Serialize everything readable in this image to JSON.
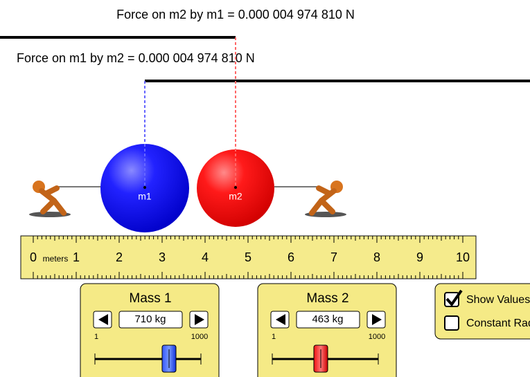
{
  "forces": {
    "on_m2": "Force on m2 by m1 = 0.000 004 974 810 N",
    "on_m1": "Force on m1 by m2 = 0.000 004 974 810 N"
  },
  "masses": [
    {
      "label": "m1"
    },
    {
      "label": "m2"
    }
  ],
  "ruler": {
    "labels": [
      "0",
      "1",
      "2",
      "3",
      "4",
      "5",
      "6",
      "7",
      "8",
      "9",
      "10"
    ],
    "unit": "meters"
  },
  "controls": [
    {
      "title": "Mass 1",
      "value": "710 kg",
      "min": "1",
      "max": "1000"
    },
    {
      "title": "Mass 2",
      "value": "463 kg",
      "min": "1",
      "max": "1000"
    }
  ],
  "options": [
    {
      "label": "Show Values",
      "checked": true
    },
    {
      "label": "Constant Radius",
      "checked": false
    }
  ]
}
